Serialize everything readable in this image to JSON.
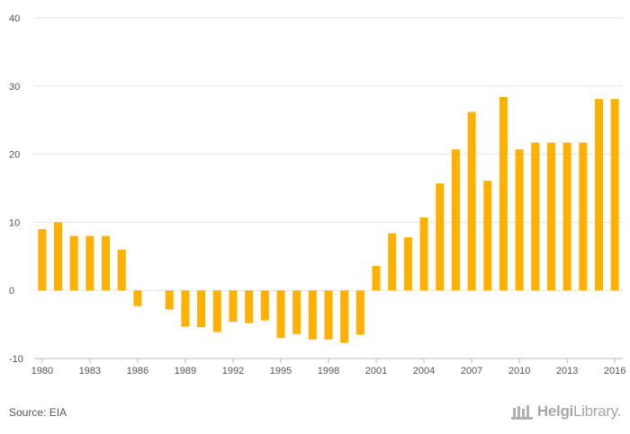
{
  "chart_data": {
    "type": "bar",
    "title": "",
    "xlabel": "",
    "ylabel": "",
    "ylim": [
      -10,
      40
    ],
    "yticks": [
      -10,
      0,
      10,
      20,
      30,
      40
    ],
    "grid": true,
    "color": "#ffb000",
    "categories": [
      "1980",
      "1981",
      "1982",
      "1983",
      "1984",
      "1985",
      "1986",
      "1987",
      "1988",
      "1989",
      "1990",
      "1991",
      "1992",
      "1993",
      "1994",
      "1995",
      "1996",
      "1997",
      "1998",
      "1999",
      "2000",
      "2001",
      "2002",
      "2003",
      "2004",
      "2005",
      "2006",
      "2007",
      "2008",
      "2009",
      "2010",
      "2011",
      "2012",
      "2013",
      "2014",
      "2015",
      "2016"
    ],
    "xtick_labels": [
      "1980",
      "1983",
      "1986",
      "1989",
      "1992",
      "1995",
      "1998",
      "2001",
      "2004",
      "2007",
      "2010",
      "2013",
      "2016"
    ],
    "values": [
      9.0,
      10.0,
      8.0,
      8.0,
      8.0,
      6.0,
      -2.3,
      null,
      -2.8,
      -5.3,
      -5.4,
      -6.1,
      -4.6,
      -4.8,
      -4.4,
      -7.0,
      -6.4,
      -7.2,
      -7.2,
      -7.7,
      -6.5,
      3.6,
      8.4,
      7.8,
      10.7,
      15.7,
      20.7,
      26.2,
      16.1,
      28.4,
      20.7,
      21.7,
      21.7,
      21.7,
      21.7,
      28.1,
      28.1
    ]
  },
  "footer": {
    "source": "Source: EIA",
    "brand_part1": "Helgi",
    "brand_part2": "Library."
  }
}
